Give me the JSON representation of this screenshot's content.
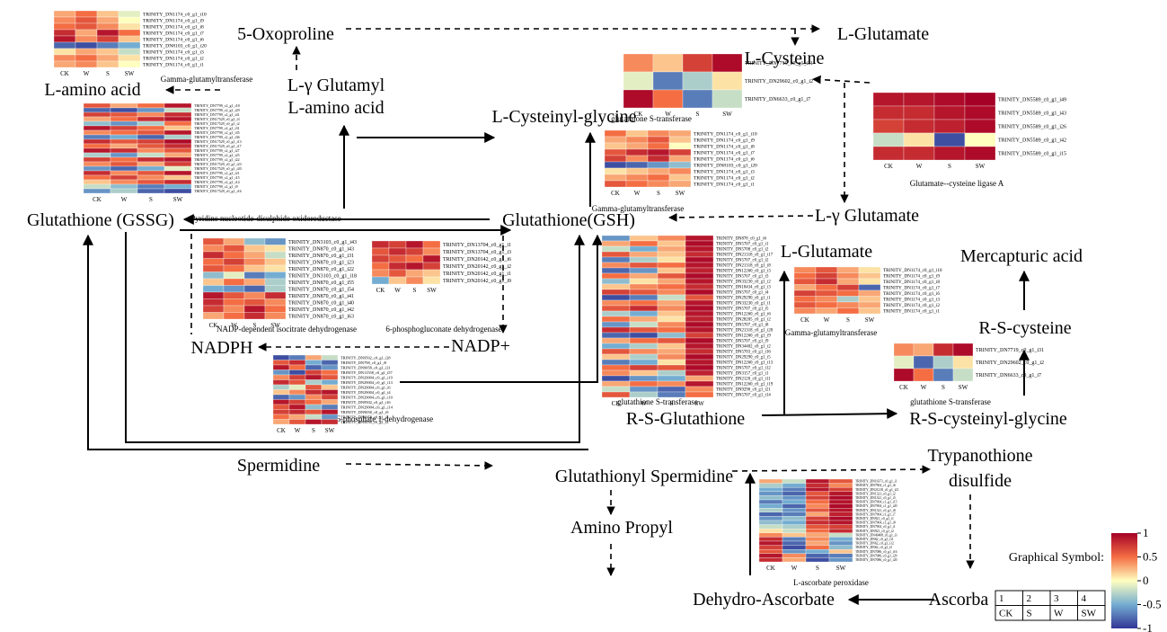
{
  "nodes": [
    "5-Oxoproline",
    "L-Glutamate",
    "L-Cysteine",
    "L-γ Glutamyl",
    "L-amino acid",
    "L-amino acid",
    "L-Cysteinyl-glycine",
    "Glutathione (GSSG)",
    "Glutathione(GSH)",
    "L-γ Glutamate",
    "L-Glutamate",
    "Mercapturic acid",
    "NADPH",
    "NADP+",
    "R-S-cysteine",
    "R-S-Glutathione",
    "R-S-cysteinyl-glycine",
    "Spermidine",
    "Glutathionyl Spermidine",
    "Trypanothione",
    "disulfide",
    "Amino Propyl",
    "Dehydro-Ascorbate",
    "Ascorba"
  ],
  "enzymes": [
    "Gamma-glutamyltransferase",
    "glutathione S-transferase",
    "Glutamate--cysteine ligase A",
    "Pyridine nucleotide-disulphide oxidoreductase",
    "Gamma-glutamyltransferase",
    "NADP-dependent isocitrate dehydrogenase",
    "6-phosphogluconate dehydrogenase",
    "Gamma-glutamyltransferase",
    "Glucose-6-phosphate 1-dehydrogenase",
    "glutathione S-transferase",
    "glutathione S-transferase",
    "L-ascorbate peroxidase"
  ],
  "heatmaps": [
    {
      "columns": [
        "CK",
        "W",
        "S",
        "SW"
      ],
      "rows": [
        "TRINITY_DN1174_c0_g1_i10",
        "TRINITY_DN1174_c0_g1_i9",
        "TRINITY_DN1174_c0_g1_i8",
        "TRINITY_DN1174_c0_g1_i7",
        "TRINITY_DN1174_c0_g1_i6",
        "TRINITY_DN8103_c0_g1_i20",
        "TRINITY_DN1174_c0_g1_i3",
        "TRINITY_DN1174_c0_g1_i2",
        "TRINITY_DN1174_c0_g1_i1"
      ],
      "values": [
        [
          0.3,
          0.5,
          0.2,
          -0.1
        ],
        [
          0.4,
          0.6,
          0.3,
          0
        ],
        [
          0.5,
          0.6,
          0.4,
          0.1
        ],
        [
          0.8,
          0.3,
          0.9,
          0.5
        ],
        [
          0.9,
          0.4,
          0.7,
          0.2
        ],
        [
          -0.8,
          -0.9,
          -0.7,
          -0.5
        ],
        [
          0.1,
          0.3,
          0.2,
          -0.2
        ],
        [
          0.4,
          0.5,
          0.3,
          0.1
        ],
        [
          0.3,
          0.4,
          0.2,
          0
        ]
      ]
    },
    {
      "columns": [
        "CK",
        "W",
        "S",
        "SW"
      ],
      "rows": [
        "TRINITY_DN7719_c0_g1_i31",
        "TRINITY_DN29602_c0_g1_i2",
        "TRINITY_DN6633_c0_g1_i7"
      ],
      "values": [
        [
          0.4,
          0.2,
          0.7,
          0.95
        ],
        [
          -0.1,
          -0.7,
          -0.3,
          0.1
        ],
        [
          0.95,
          0.5,
          -0.7,
          -0.2
        ]
      ]
    },
    {
      "columns": [
        "CK",
        "W",
        "S",
        "SW"
      ],
      "rows": [
        "TRINITY_DN5589_c0_g1_i49",
        "TRINITY_DN5589_c0_g1_i43",
        "TRINITY_DN5589_c0_g1_i26",
        "TRINITY_DN5589_c0_g1_i42",
        "TRINITY_DN5589_c0_g1_i15"
      ],
      "values": [
        [
          0.9,
          0.9,
          0.95,
          1
        ],
        [
          0.8,
          0.8,
          0.9,
          0.95
        ],
        [
          0.7,
          0.8,
          0.85,
          0.95
        ],
        [
          -0.2,
          0.1,
          -0.9,
          0
        ],
        [
          0.8,
          0.8,
          0.9,
          0.95
        ]
      ]
    },
    {
      "columns": [
        "CK",
        "W",
        "S",
        "SW"
      ],
      "rows": [
        "TRINITY_DN1174_c0_g1_i10",
        "TRINITY_DN1174_c0_g1_i9",
        "TRINITY_DN1174_c0_g1_i8",
        "TRINITY_DN1174_c0_g1_i7",
        "TRINITY_DN1174_c0_g1_i6",
        "TRINITY_DN8103_c0_g1_i20",
        "TRINITY_DN1174_c0_g1_i3",
        "TRINITY_DN1174_c0_g1_i2",
        "TRINITY_DN1174_c0_g1_i1"
      ],
      "values": [
        [
          0.5,
          0.2,
          0.4,
          0.3
        ],
        [
          0.3,
          0.4,
          0.6,
          0.2
        ],
        [
          0.2,
          0.3,
          0.5,
          0
        ],
        [
          0.6,
          0.8,
          0.9,
          0.7
        ],
        [
          0.7,
          0.4,
          0.8,
          0.3
        ],
        [
          -0.9,
          -0.8,
          -0.6,
          -0.4
        ],
        [
          0.1,
          0.2,
          0.3,
          0.4
        ],
        [
          0.3,
          0.4,
          0.5,
          0.2
        ],
        [
          0.6,
          0.5,
          0.4,
          0.3
        ]
      ]
    },
    {
      "columns": [
        "CK",
        "W",
        "S",
        "SW"
      ],
      "rows": [
        "TRINITY_DN7799_c2_g1_i18",
        "TRINITY_DN7799_c2_g1_i29",
        "TRINITY_DN7799_c2_g1_i41",
        "TRINITY_DN17529_c0_g1_i3",
        "TRINITY_DN17529_c0_g1_i2",
        "TRINITY_DN7799_c2_g1_i31",
        "TRINITY_DN7799_c2_g1_i35",
        "TRINITY_DN7799_c2_g1_i36",
        "TRINITY_DN17529_c0_g1_i13",
        "TRINITY_DN17529_c0_g1_i17",
        "TRINITY_DN7799_c2_g1_i27",
        "TRINITY_DN7799_c2_g1_i25",
        "TRINITY_DN7799_c2_g1_i22",
        "TRINITY_DN17529_c0_g1_i23",
        "TRINITY_DN17529_c0_g1_i20",
        "TRINITY_DN7799_c2_g1_i21",
        "TRINITY_DN7799_c2_g1_i15",
        "TRINITY_DN7799_c2_g1_i14",
        "TRINITY_DN7799_c2_g1_i9",
        "TRINITY_DN17529_c0_g1_i16"
      ],
      "values": [
        [
          0.6,
          0.3,
          0.5,
          0.9
        ],
        [
          -0.8,
          -0.9,
          -0.6,
          -0.2
        ],
        [
          0.7,
          0.6,
          0.4,
          0.8
        ],
        [
          0.3,
          0.5,
          0.8,
          0.9
        ],
        [
          -0.4,
          -0.6,
          -0.3,
          0.5
        ],
        [
          0.9,
          0.7,
          0.5,
          0.2
        ],
        [
          0.4,
          0.5,
          0.6,
          0.9
        ],
        [
          -0.7,
          -0.5,
          -0.8,
          -0.3
        ],
        [
          0.8,
          0.6,
          0.7,
          0.95
        ],
        [
          0.5,
          0.3,
          0.6,
          0.8
        ],
        [
          0.9,
          0.8,
          0.4,
          0.6
        ],
        [
          -0.3,
          -0.6,
          -0.2,
          0.3
        ],
        [
          0.7,
          0.5,
          0.8,
          0.9
        ],
        [
          0.4,
          0.6,
          0.3,
          0.7
        ],
        [
          -0.6,
          -0.8,
          -0.5,
          -0.1
        ],
        [
          0.8,
          0.4,
          0.6,
          0.9
        ],
        [
          0.5,
          0.7,
          0.4,
          0.2
        ],
        [
          0.2,
          0.4,
          0.6,
          0.8
        ],
        [
          -0.2,
          -0.4,
          -0.7,
          -0.5
        ],
        [
          -0.6,
          -0.3,
          -0.8,
          -0.9
        ]
      ]
    },
    {
      "columns": [
        "CK",
        "W",
        "S",
        "SW"
      ],
      "rows": [
        "TRINITY_DN3103_c0_g1_i43",
        "TRINITY_DN870_c0_g1_i43",
        "TRINITY_DN870_c0_g1_i31",
        "TRINITY_DN870_c0_g1_i23",
        "TRINITY_DN870_c0_g1_i22",
        "TRINITY_DN3103_c0_g1_i18",
        "TRINITY_DN870_c0_g1_i55",
        "TRINITY_DN870_c0_g1_i54",
        "TRINITY_DN870_c0_g1_i41",
        "TRINITY_DN870_c0_g1_i40",
        "TRINITY_DN870_c0_g1_i42",
        "TRINITY_DN870_c0_g1_i63"
      ],
      "values": [
        [
          0.6,
          0.3,
          -0.4,
          -0.6
        ],
        [
          0.4,
          0.6,
          0.2,
          0.1
        ],
        [
          0.8,
          0.5,
          0.3,
          -0.2
        ],
        [
          0.5,
          0.7,
          0.4,
          0.2
        ],
        [
          0.6,
          0.5,
          0.2,
          0.1
        ],
        [
          -0.4,
          -0.1,
          -0.7,
          -0.5
        ],
        [
          0.2,
          0.5,
          0.3,
          -0.3
        ],
        [
          -0.5,
          -0.6,
          -0.8,
          -0.3
        ],
        [
          0.9,
          0.6,
          0.4,
          0.8
        ],
        [
          0.8,
          0.5,
          0.6,
          0.4
        ],
        [
          0.7,
          0.4,
          0.9,
          0.5
        ],
        [
          0.3,
          0.5,
          0.8,
          0.4
        ]
      ]
    },
    {
      "columns": [
        "CK",
        "W",
        "S",
        "SW"
      ],
      "rows": [
        "TRINITY_DN13704_c0_g1_i1",
        "TRINITY_DN13704_c0_g1_i3",
        "TRINITY_DN20142_c0_g1_i6",
        "TRINITY_DN20142_c0_g1_i2",
        "TRINITY_DN20142_c0_g1_i1",
        "TRINITY_DN20142_c0_g1_i9"
      ],
      "values": [
        [
          0.8,
          0.7,
          0.9,
          0.5
        ],
        [
          0.6,
          0.8,
          0.7,
          0.4
        ],
        [
          0.7,
          0.6,
          0.5,
          0.9
        ],
        [
          0.5,
          0.8,
          0.9,
          0.7
        ],
        [
          0.4,
          0.6,
          0.3,
          0.2
        ],
        [
          -0.5,
          0.2,
          0.4,
          0.1
        ]
      ]
    },
    {
      "columns": [
        "CK",
        "W",
        "S",
        "SW"
      ],
      "rows": [
        "TRINITY_DN9502_c0_g1_i28",
        "TRINITY_DN798_c0_g1_i9",
        "TRINITY_DN9058_c0_g1_i31",
        "TRINITY_DN11558_c0_g1_i57",
        "TRINITY_DN29004_c0_g1_i19",
        "TRINITY_DN29004_c0_g1_i13",
        "TRINITY_DN29004_c0_g1_i6",
        "TRINITY_DN29004_c0_g1_i4",
        "TRINITY_DN29004_c0_g1_i10",
        "TRINITY_DN9502_c0_g1_i16",
        "TRINITY_DN29004_c0_g1_i14",
        "TRINITY_DN9058_c0_g1_i9",
        "TRINITY_DN9058_c0_g1_i5",
        "TRINITY_DN9058_c0_g1_i2"
      ],
      "values": [
        [
          -0.9,
          -0.7,
          0.3,
          -0.2
        ],
        [
          0.6,
          0.8,
          -0.5,
          -0.8
        ],
        [
          0.9,
          0.5,
          -0.8,
          -0.6
        ],
        [
          -0.6,
          -0.9,
          0.7,
          0.5
        ],
        [
          0.4,
          0.7,
          0.9,
          0.6
        ],
        [
          0.8,
          0.6,
          -0.3,
          -0.5
        ],
        [
          -0.3,
          -0.1,
          0.6,
          0.2
        ],
        [
          0.2,
          0.4,
          0.8,
          0.9
        ],
        [
          -0.8,
          -0.6,
          0.4,
          0.7
        ],
        [
          0.9,
          0.7,
          0.5,
          0.3
        ],
        [
          0.6,
          0.9,
          -0.4,
          -0.7
        ],
        [
          0.7,
          0.8,
          0.6,
          0.9
        ],
        [
          0.5,
          0.3,
          -0.2,
          -0.6
        ],
        [
          0.3,
          0.6,
          0.9,
          0.8
        ]
      ]
    },
    {
      "columns": [
        "CK",
        "W",
        "S",
        "SW"
      ],
      "rows": [
        "TRINITY_DN878_c0_g1_i6",
        "TRINITY_DN5707_c0_g1_i1",
        "TRINITY_DN5708_c0_g1_i2",
        "TRINITY_DN21318_c0_g1_i17",
        "TRINITY_DN5707_c0_g1_i2",
        "TRINITY_DN21318_c0_g1_i8",
        "TRINITY_DN12260_c0_g1_i3",
        "TRINITY_DN5707_c0_g1_i3",
        "TRINITY_DN33230_c0_g1_i2",
        "TRINITY_DN18434_c0_g1_i3",
        "TRINITY_DN5707_c0_g1_i4",
        "TRINITY_DN29290_c0_g1_i1",
        "TRINITY_DN33230_c0_g1_i1",
        "TRINITY_DN5707_c0_g1_i5",
        "TRINITY_DN12260_c0_g1_i6",
        "TRINITY_DN28205_c0_g1_i2",
        "TRINITY_DN5707_c0_g1_i8",
        "TRINITY_DN21318_c0_g1_i20",
        "TRINITY_DN12260_c0_g1_i9",
        "TRINITY_DN5707_c0_g1_i9",
        "TRINITY_DN34402_c0_g1_i2",
        "TRINITY_DN5703_c0_g1_i16",
        "TRINITY_DN29290_c0_g1_i5",
        "TRINITY_DN12260_c0_g1_i13",
        "TRINITY_DN5707_c0_g1_i12",
        "TRINITY_DN3157_c0_g1_i1",
        "TRINITY_DN2120_c0_g1_i11",
        "TRINITY_DN12260_c0_g1_i19",
        "TRINITY_DN9290_c0_g1_i21",
        "TRINITY_DN5707_c0_g1_i14"
      ],
      "values": [
        [
          -0.6,
          0.2,
          0.4,
          0.9
        ],
        [
          0.3,
          0.5,
          0.2,
          0.95
        ],
        [
          -0.2,
          -0.5,
          0.3,
          0.9
        ],
        [
          0.6,
          0.3,
          0.2,
          0.8
        ],
        [
          -0.7,
          -0.3,
          0.1,
          0.95
        ],
        [
          0.4,
          0.6,
          0.5,
          0.9
        ],
        [
          -0.8,
          -0.6,
          0.2,
          0.85
        ],
        [
          0.5,
          0.3,
          0.6,
          0.95
        ],
        [
          -0.4,
          0.1,
          0.3,
          0.9
        ],
        [
          0.2,
          0.4,
          0.5,
          0.8
        ],
        [
          0.7,
          0.6,
          0.4,
          0.95
        ],
        [
          -0.9,
          -0.7,
          -0.2,
          0.6
        ],
        [
          0.4,
          0.5,
          0.3,
          0.9
        ],
        [
          0.6,
          0.8,
          0.4,
          0.95
        ],
        [
          -0.3,
          -0.5,
          0.2,
          0.9
        ],
        [
          0.5,
          0.3,
          0.1,
          0.85
        ],
        [
          -0.6,
          -0.2,
          0.4,
          0.95
        ],
        [
          0.8,
          0.6,
          0.5,
          0.9
        ],
        [
          -0.8,
          -0.9,
          -0.4,
          0.7
        ],
        [
          0.3,
          0.5,
          0.6,
          0.95
        ],
        [
          -0.5,
          -0.3,
          0.2,
          0.9
        ],
        [
          0.6,
          0.4,
          0.3,
          0.8
        ],
        [
          0.2,
          -0.3,
          0.4,
          0.95
        ],
        [
          -0.7,
          -0.5,
          0.1,
          0.9
        ],
        [
          0.5,
          0.7,
          0.6,
          0.95
        ],
        [
          0.4,
          0.2,
          -0.3,
          0.85
        ],
        [
          -0.9,
          -0.6,
          -0.5,
          0.3
        ],
        [
          0.3,
          0.5,
          0.4,
          0.9
        ],
        [
          -0.2,
          -0.6,
          -0.8,
          0.4
        ],
        [
          0.6,
          -0.3,
          -0.7,
          0.5
        ]
      ]
    },
    {
      "columns": [
        "CK",
        "W",
        "S",
        "SW"
      ],
      "rows": [
        "TRINITY_DN1174_c0_g1_i10",
        "TRINITY_DN1174_c0_g1_i9",
        "TRINITY_DN1174_c0_g1_i8",
        "TRINITY_DN1174_c0_g1_i7",
        "TRINITY_DN1174_c0_g1_i6",
        "TRINITY_DN1174_c0_g1_i3",
        "TRINITY_DN1174_c0_g1_i2",
        "TRINITY_DN1174_c0_g1_i1"
      ],
      "values": [
        [
          0.4,
          0.6,
          0.3,
          0.1
        ],
        [
          0.5,
          0.7,
          0.4,
          0.2
        ],
        [
          0.6,
          0.8,
          0.3,
          0.1
        ],
        [
          0.3,
          0.5,
          0.7,
          -0.8
        ],
        [
          0.7,
          0.6,
          0.5,
          0.3
        ],
        [
          0.5,
          0.4,
          -0.3,
          0.2
        ],
        [
          0.6,
          0.5,
          0.4,
          0.3
        ],
        [
          0.4,
          0.3,
          0.5,
          0.2
        ]
      ]
    },
    {
      "columns": [
        "CK",
        "W",
        "S",
        "SW"
      ],
      "rows": [
        "TRINITY_DN7719_c0_g1_i31",
        "TRINITY_DN29602_c0_g1_i2",
        "TRINITY_DN6633_c0_g1_i7"
      ],
      "values": [
        [
          0.4,
          0.3,
          0.8,
          0.95
        ],
        [
          -0.1,
          -0.8,
          -0.3,
          0.1
        ],
        [
          0.95,
          0.5,
          -0.7,
          -0.2
        ]
      ]
    },
    {
      "columns": [
        "CK",
        "W",
        "S",
        "SW"
      ],
      "rows": [
        "TRINITY_DN16371_c0_g1_i1",
        "TRINITY_DN7904_c1_g1_i6",
        "TRINITY_DN21218_c0_g1_i21",
        "TRINITY_DN1321_c0_g1_i2",
        "TRINITY_DN1321_c0_g1_i5",
        "TRINITY_DN7904_c1_g1_i15",
        "TRINITY_DN7904_c1_g1_i20",
        "TRINITY_DN1321_c0_g1_i8",
        "TRINITY_DN7904_c1_g1_i7",
        "TRINITY_DN921_c0_g1_i1",
        "TRINITY_DN7904_c1_g1_i8",
        "TRINITY_DN7904_c0_g1_i1",
        "TRINITY_DN921_c0_g1_i2",
        "TRINITY_DN49408_c0_g1_i3",
        "TRINITY_DN62_c0_g1_i11",
        "TRINITY_DN62_c0_g1_i12",
        "TRINITY_DN62_c0_g1_i5",
        "TRINITY_DN7086_c0_g1_i16",
        "TRINITY_DN7086_c0_g1_i29",
        "TRINITY_DN7086_c0_g1_i20"
      ],
      "values": [
        [
          0.3,
          -0.2,
          0.9,
          0.6
        ],
        [
          -0.3,
          -0.5,
          0.8,
          0.4
        ],
        [
          -0.5,
          -0.7,
          0.9,
          0.7
        ],
        [
          -0.6,
          -0.8,
          0.6,
          0.9
        ],
        [
          -0.4,
          -0.6,
          0.7,
          0.95
        ],
        [
          -0.7,
          -0.5,
          0.5,
          0.9
        ],
        [
          -0.5,
          -0.8,
          0.4,
          0.95
        ],
        [
          -0.3,
          -0.6,
          0.6,
          0.9
        ],
        [
          -0.8,
          -0.7,
          0.3,
          0.85
        ],
        [
          -0.6,
          -0.4,
          0.7,
          0.95
        ],
        [
          -0.4,
          -0.5,
          0.8,
          0.9
        ],
        [
          -0.2,
          -0.3,
          0.6,
          0.7
        ],
        [
          0.1,
          -0.2,
          0.5,
          0.8
        ],
        [
          0.4,
          0.2,
          0.3,
          -0.2
        ],
        [
          0.8,
          -0.7,
          0.4,
          -0.5
        ],
        [
          0.9,
          -0.8,
          0.3,
          -0.6
        ],
        [
          0.7,
          -0.9,
          0.5,
          -0.4
        ],
        [
          0.6,
          -0.6,
          -0.5,
          0.2
        ],
        [
          0.9,
          0.4,
          -0.8,
          -0.7
        ],
        [
          0.8,
          0.3,
          -0.9,
          -0.6
        ]
      ]
    }
  ],
  "legend": {
    "title": "Graphical Symbol:",
    "ticks": [
      1,
      0.5,
      0,
      -0.5,
      -1
    ],
    "table": [
      [
        "1",
        "2",
        "3",
        "4"
      ],
      [
        "CK",
        "S",
        "W",
        "SW"
      ]
    ]
  }
}
